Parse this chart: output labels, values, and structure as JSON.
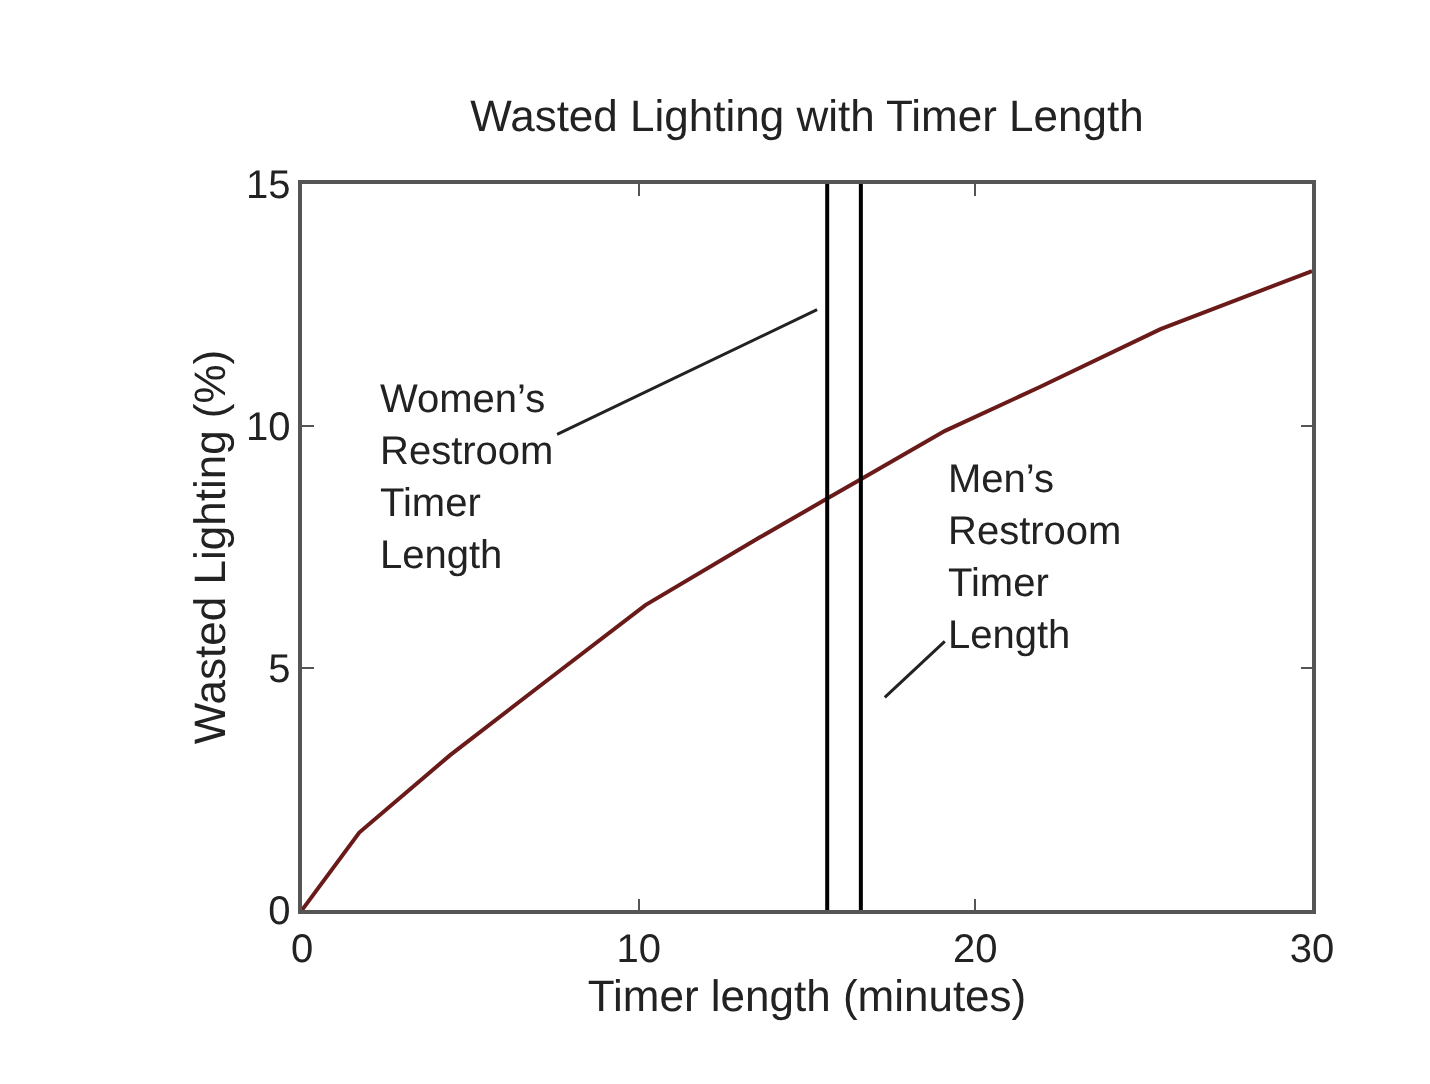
{
  "chart_data": {
    "type": "line",
    "title": "Wasted Lighting with Timer Length",
    "xlabel": "Timer length (minutes)",
    "ylabel": "Wasted Lighting (%)",
    "x": [
      0,
      1.7,
      4.4,
      7.2,
      10.2,
      13.6,
      15.6,
      16.6,
      19.1,
      21.9,
      25.5,
      30
    ],
    "series": [
      {
        "color": "#6b1a1a",
        "values": [
          0,
          1.6,
          3.2,
          4.7,
          6.3,
          7.7,
          8.5,
          8.9,
          9.9,
          10.8,
          12.0,
          13.2
        ]
      }
    ],
    "xlim": [
      0,
      30
    ],
    "xticks": [
      0,
      10,
      20,
      30
    ],
    "ylim": [
      0,
      15
    ],
    "yticks": [
      0,
      5,
      10,
      15
    ],
    "marker": "none",
    "line_style": "solid",
    "ref_lines": [
      {
        "axis": "x",
        "value": 15.6,
        "color": "#000000"
      },
      {
        "axis": "x",
        "value": 16.6,
        "color": "#000000"
      }
    ],
    "annotations": [
      "Women’s\nRestroom\nTimer\nLength",
      "Men’s\nRestroom\nTimer\nLength"
    ]
  }
}
